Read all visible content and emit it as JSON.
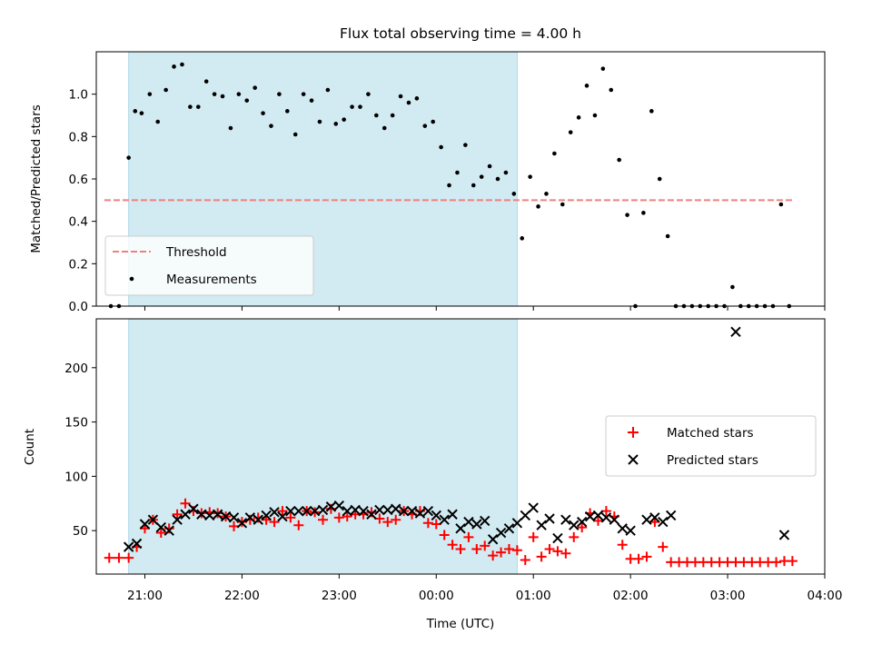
{
  "title": "Flux total observing time = 4.00 h",
  "colors": {
    "threshold": "#f08080",
    "measurement": "#000000",
    "matched": "#ff0000",
    "predicted": "#000000",
    "shade": "#add8e6"
  },
  "chart_data": [
    {
      "type": "scatter",
      "ylabel": "Matched/Predicted stars",
      "ylim": [
        0,
        1.2
      ],
      "yticks": [
        0.0,
        0.2,
        0.4,
        0.6,
        0.8,
        1.0
      ],
      "ytick_labels": [
        "0.0",
        "0.2",
        "0.4",
        "0.6",
        "0.8",
        "1.0"
      ],
      "shaded_interval": [
        "20:50",
        "00:50"
      ],
      "threshold": {
        "value": 0.5,
        "x_range": [
          "20:35",
          "03:40"
        ]
      },
      "legend": {
        "location": "lower left",
        "entries": [
          "Threshold",
          "Measurements"
        ]
      },
      "series": [
        {
          "name": "Measurements",
          "marker": "dot",
          "points": [
            [
              "20:39",
              0.0
            ],
            [
              "20:44",
              0.0
            ],
            [
              "20:50",
              0.7
            ],
            [
              "20:54",
              0.92
            ],
            [
              "20:58",
              0.91
            ],
            [
              "21:03",
              1.0
            ],
            [
              "21:08",
              0.87
            ],
            [
              "21:13",
              1.02
            ],
            [
              "21:18",
              1.13
            ],
            [
              "21:23",
              1.14
            ],
            [
              "21:28",
              0.94
            ],
            [
              "21:33",
              0.94
            ],
            [
              "21:38",
              1.06
            ],
            [
              "21:43",
              1.0
            ],
            [
              "21:48",
              0.99
            ],
            [
              "21:53",
              0.84
            ],
            [
              "21:58",
              1.0
            ],
            [
              "22:03",
              0.97
            ],
            [
              "22:08",
              1.03
            ],
            [
              "22:13",
              0.91
            ],
            [
              "22:18",
              0.85
            ],
            [
              "22:23",
              1.0
            ],
            [
              "22:28",
              0.92
            ],
            [
              "22:33",
              0.81
            ],
            [
              "22:38",
              1.0
            ],
            [
              "22:43",
              0.97
            ],
            [
              "22:48",
              0.87
            ],
            [
              "22:53",
              1.02
            ],
            [
              "22:58",
              0.86
            ],
            [
              "23:03",
              0.88
            ],
            [
              "23:08",
              0.94
            ],
            [
              "23:13",
              0.94
            ],
            [
              "23:18",
              1.0
            ],
            [
              "23:23",
              0.9
            ],
            [
              "23:28",
              0.84
            ],
            [
              "23:33",
              0.9
            ],
            [
              "23:38",
              0.99
            ],
            [
              "23:43",
              0.96
            ],
            [
              "23:48",
              0.98
            ],
            [
              "23:53",
              0.85
            ],
            [
              "23:58",
              0.87
            ],
            [
              "00:03",
              0.75
            ],
            [
              "00:08",
              0.57
            ],
            [
              "00:13",
              0.63
            ],
            [
              "00:18",
              0.76
            ],
            [
              "00:23",
              0.57
            ],
            [
              "00:28",
              0.61
            ],
            [
              "00:33",
              0.66
            ],
            [
              "00:38",
              0.6
            ],
            [
              "00:43",
              0.63
            ],
            [
              "00:48",
              0.53
            ],
            [
              "00:53",
              0.32
            ],
            [
              "00:58",
              0.61
            ],
            [
              "01:03",
              0.47
            ],
            [
              "01:08",
              0.53
            ],
            [
              "01:13",
              0.72
            ],
            [
              "01:18",
              0.48
            ],
            [
              "01:23",
              0.82
            ],
            [
              "01:28",
              0.89
            ],
            [
              "01:33",
              1.04
            ],
            [
              "01:38",
              0.9
            ],
            [
              "01:43",
              1.12
            ],
            [
              "01:48",
              1.02
            ],
            [
              "01:53",
              0.69
            ],
            [
              "01:58",
              0.43
            ],
            [
              "02:03",
              0.0
            ],
            [
              "02:08",
              0.44
            ],
            [
              "02:13",
              0.92
            ],
            [
              "02:18",
              0.6
            ],
            [
              "02:23",
              0.33
            ],
            [
              "02:28",
              0.0
            ],
            [
              "02:33",
              0.0
            ],
            [
              "02:38",
              0.0
            ],
            [
              "02:43",
              0.0
            ],
            [
              "02:48",
              0.0
            ],
            [
              "02:53",
              0.0
            ],
            [
              "02:58",
              0.0
            ],
            [
              "03:03",
              0.09
            ],
            [
              "03:08",
              0.0
            ],
            [
              "03:13",
              0.0
            ],
            [
              "03:18",
              0.0
            ],
            [
              "03:23",
              0.0
            ],
            [
              "03:28",
              0.0
            ],
            [
              "03:33",
              0.48
            ],
            [
              "03:38",
              0.0
            ]
          ]
        }
      ]
    },
    {
      "type": "scatter",
      "xlabel": "Time (UTC)",
      "ylabel": "Count",
      "xlim": [
        "20:30",
        "04:00"
      ],
      "xticks": [
        "21:00",
        "22:00",
        "23:00",
        "00:00",
        "01:00",
        "02:00",
        "03:00",
        "04:00"
      ],
      "ylim": [
        10,
        245
      ],
      "yticks": [
        50,
        100,
        150,
        200
      ],
      "shaded_interval": [
        "20:50",
        "00:50"
      ],
      "legend": {
        "location": "center right",
        "entries": [
          "Matched stars",
          "Predicted stars"
        ]
      },
      "series": [
        {
          "name": "Matched stars",
          "marker": "plus",
          "points": [
            [
              "20:38",
              25
            ],
            [
              "20:44",
              25
            ],
            [
              "20:50",
              25
            ],
            [
              "20:55",
              35
            ],
            [
              "21:00",
              52
            ],
            [
              "21:05",
              60
            ],
            [
              "21:10",
              48
            ],
            [
              "21:15",
              52
            ],
            [
              "21:20",
              65
            ],
            [
              "21:25",
              75
            ],
            [
              "21:30",
              68
            ],
            [
              "21:35",
              66
            ],
            [
              "21:40",
              67
            ],
            [
              "21:45",
              66
            ],
            [
              "21:50",
              63
            ],
            [
              "21:55",
              54
            ],
            [
              "22:00",
              58
            ],
            [
              "22:05",
              60
            ],
            [
              "22:10",
              62
            ],
            [
              "22:15",
              60
            ],
            [
              "22:20",
              58
            ],
            [
              "22:25",
              68
            ],
            [
              "22:30",
              62
            ],
            [
              "22:35",
              55
            ],
            [
              "22:40",
              68
            ],
            [
              "22:45",
              67
            ],
            [
              "22:50",
              60
            ],
            [
              "22:55",
              70
            ],
            [
              "23:00",
              62
            ],
            [
              "23:05",
              63
            ],
            [
              "23:10",
              65
            ],
            [
              "23:15",
              65
            ],
            [
              "23:20",
              67
            ],
            [
              "23:25",
              61
            ],
            [
              "23:30",
              58
            ],
            [
              "23:35",
              60
            ],
            [
              "23:40",
              68
            ],
            [
              "23:45",
              65
            ],
            [
              "23:50",
              68
            ],
            [
              "23:55",
              57
            ],
            [
              "00:00",
              56
            ],
            [
              "00:05",
              46
            ],
            [
              "00:10",
              37
            ],
            [
              "00:15",
              33
            ],
            [
              "00:20",
              44
            ],
            [
              "00:25",
              33
            ],
            [
              "00:30",
              36
            ],
            [
              "00:35",
              27
            ],
            [
              "00:40",
              30
            ],
            [
              "00:45",
              33
            ],
            [
              "00:50",
              32
            ],
            [
              "00:55",
              23
            ],
            [
              "01:00",
              44
            ],
            [
              "01:05",
              26
            ],
            [
              "01:10",
              33
            ],
            [
              "01:15",
              31
            ],
            [
              "01:20",
              29
            ],
            [
              "01:25",
              44
            ],
            [
              "01:30",
              53
            ],
            [
              "01:35",
              66
            ],
            [
              "01:40",
              59
            ],
            [
              "01:45",
              68
            ],
            [
              "01:50",
              63
            ],
            [
              "01:55",
              37
            ],
            [
              "02:00",
              24
            ],
            [
              "02:05",
              24
            ],
            [
              "02:10",
              26
            ],
            [
              "02:15",
              58
            ],
            [
              "02:20",
              35
            ],
            [
              "02:25",
              21
            ],
            [
              "02:30",
              21
            ],
            [
              "02:35",
              21
            ],
            [
              "02:40",
              21
            ],
            [
              "02:45",
              21
            ],
            [
              "02:50",
              21
            ],
            [
              "02:55",
              21
            ],
            [
              "03:00",
              21
            ],
            [
              "03:05",
              21
            ],
            [
              "03:10",
              21
            ],
            [
              "03:15",
              21
            ],
            [
              "03:20",
              21
            ],
            [
              "03:25",
              21
            ],
            [
              "03:30",
              21
            ],
            [
              "03:35",
              22
            ],
            [
              "03:40",
              22
            ]
          ]
        },
        {
          "name": "Predicted stars",
          "marker": "x",
          "points": [
            [
              "20:50",
              35
            ],
            [
              "20:55",
              38
            ],
            [
              "21:00",
              56
            ],
            [
              "21:05",
              60
            ],
            [
              "21:10",
              53
            ],
            [
              "21:15",
              50
            ],
            [
              "21:20",
              60
            ],
            [
              "21:25",
              65
            ],
            [
              "21:30",
              70
            ],
            [
              "21:35",
              65
            ],
            [
              "21:40",
              64
            ],
            [
              "21:45",
              65
            ],
            [
              "21:50",
              63
            ],
            [
              "21:55",
              62
            ],
            [
              "22:00",
              57
            ],
            [
              "22:05",
              62
            ],
            [
              "22:10",
              60
            ],
            [
              "22:15",
              64
            ],
            [
              "22:20",
              67
            ],
            [
              "22:25",
              63
            ],
            [
              "22:30",
              68
            ],
            [
              "22:35",
              68
            ],
            [
              "22:40",
              68
            ],
            [
              "22:45",
              68
            ],
            [
              "22:50",
              69
            ],
            [
              "22:55",
              72
            ],
            [
              "23:00",
              73
            ],
            [
              "23:05",
              68
            ],
            [
              "23:10",
              69
            ],
            [
              "23:15",
              68
            ],
            [
              "23:20",
              65
            ],
            [
              "23:25",
              69
            ],
            [
              "23:30",
              69
            ],
            [
              "23:35",
              70
            ],
            [
              "23:40",
              68
            ],
            [
              "23:45",
              68
            ],
            [
              "23:50",
              66
            ],
            [
              "23:55",
              68
            ],
            [
              "00:00",
              64
            ],
            [
              "00:05",
              60
            ],
            [
              "00:10",
              65
            ],
            [
              "00:15",
              52
            ],
            [
              "00:20",
              58
            ],
            [
              "00:25",
              56
            ],
            [
              "00:30",
              59
            ],
            [
              "00:35",
              42
            ],
            [
              "00:40",
              48
            ],
            [
              "00:45",
              52
            ],
            [
              "00:50",
              57
            ],
            [
              "00:55",
              64
            ],
            [
              "01:00",
              71
            ],
            [
              "01:05",
              55
            ],
            [
              "01:10",
              61
            ],
            [
              "01:15",
              43
            ],
            [
              "01:20",
              60
            ],
            [
              "01:25",
              55
            ],
            [
              "01:30",
              58
            ],
            [
              "01:35",
              63
            ],
            [
              "01:40",
              64
            ],
            [
              "01:45",
              62
            ],
            [
              "01:50",
              60
            ],
            [
              "01:55",
              52
            ],
            [
              "02:00",
              50
            ],
            [
              "02:10",
              60
            ],
            [
              "02:15",
              62
            ],
            [
              "02:20",
              58
            ],
            [
              "02:25",
              64
            ],
            [
              "03:05",
              233
            ],
            [
              "03:35",
              46
            ]
          ]
        }
      ]
    }
  ]
}
